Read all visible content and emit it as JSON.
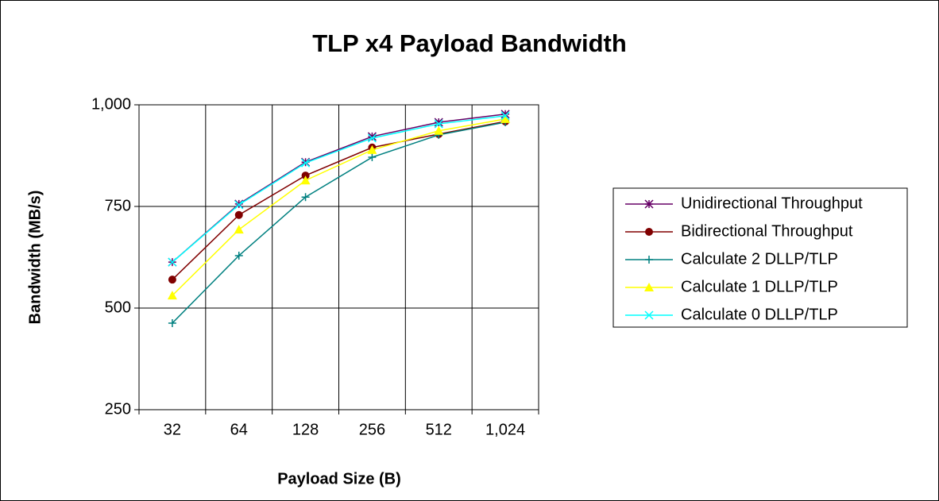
{
  "chart_data": {
    "type": "line",
    "title": "TLP x4 Payload Bandwidth",
    "x_label": "Payload Size (B)",
    "y_label": "Bandwidth (MB/s)",
    "categories": [
      "32",
      "64",
      "128",
      "256",
      "512",
      "1,024"
    ],
    "ylim": [
      250,
      1000
    ],
    "yticks": [
      250,
      500,
      750,
      {
        "value": 1000,
        "label": "1,000"
      }
    ],
    "grid": true,
    "legend": "right",
    "series": [
      {
        "name": "Unidirectional Throughput",
        "color": "#660066",
        "marker": "star",
        "values": [
          613,
          756,
          859,
          922,
          957,
          977
        ]
      },
      {
        "name": "Bidirectional Throughput",
        "color": "#800000",
        "marker": "circle",
        "values": [
          570,
          729,
          826,
          895,
          928,
          959
        ]
      },
      {
        "name": "Calculate 2 DLLP/TLP",
        "color": "#008080",
        "marker": "plus",
        "values": [
          463,
          629,
          773,
          871,
          926,
          957
        ]
      },
      {
        "name": "Calculate 1 DLLP/TLP",
        "color": "#ffff00",
        "marker": "triangle",
        "values": [
          531,
          693,
          814,
          889,
          936,
          965
        ]
      },
      {
        "name": "Calculate 0 DLLP/TLP",
        "color": "#00ffff",
        "marker": "x",
        "values": [
          613,
          754,
          857,
          918,
          953,
          973
        ]
      }
    ]
  }
}
